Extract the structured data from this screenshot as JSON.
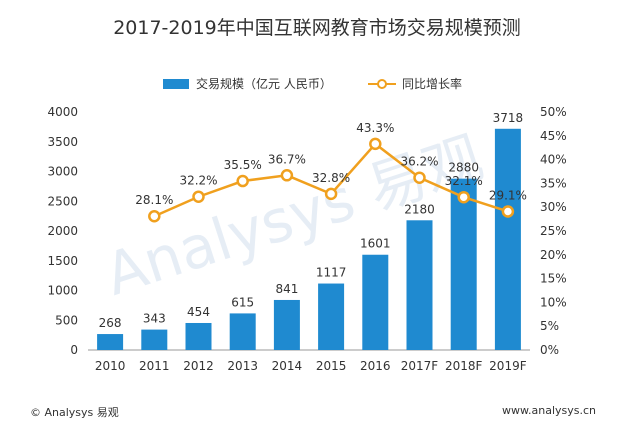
{
  "chart_data": {
    "type": "bar",
    "title": "2017-2019年中国互联网教育市场交易规模预测",
    "categories": [
      "2010",
      "2011",
      "2012",
      "2013",
      "2014",
      "2015",
      "2016",
      "2017F",
      "2018F",
      "2019F"
    ],
    "series": [
      {
        "name": "交易规模（亿元 人民币）",
        "type": "bar",
        "axis": "left",
        "values": [
          268,
          343,
          454,
          615,
          841,
          1117,
          1601,
          2180,
          2880,
          3718
        ],
        "labels": [
          "268",
          "343",
          "454",
          "615",
          "841",
          "1117",
          "1601",
          "2180",
          "2880",
          "3718"
        ]
      },
      {
        "name": "同比增长率",
        "type": "line",
        "axis": "right",
        "values": [
          null,
          28.1,
          32.2,
          35.5,
          36.7,
          32.8,
          43.3,
          36.2,
          32.1,
          29.1
        ],
        "labels": [
          "",
          "28.1%",
          "32.2%",
          "35.5%",
          "36.7%",
          "32.8%",
          "43.3%",
          "36.2%",
          "32.1%",
          "29.1%"
        ]
      }
    ],
    "y_left": {
      "min": 0,
      "max": 4000,
      "ticks": [
        "0",
        "500",
        "1000",
        "1500",
        "2000",
        "2500",
        "3000",
        "3500",
        "4000"
      ]
    },
    "y_right": {
      "min": 0,
      "max": 50,
      "ticks": [
        "0%",
        "5%",
        "10%",
        "15%",
        "20%",
        "25%",
        "30%",
        "35%",
        "40%",
        "45%",
        "50%"
      ]
    },
    "grid": false,
    "legend_position": "top"
  },
  "colors": {
    "bar": "#1f8ad0",
    "line": "#f0a01e",
    "marker_fill": "#ffffff",
    "text": "#333333",
    "watermark": "#c8d8ea"
  },
  "watermark": "Analysys 易观",
  "footer": {
    "left": "© Analysys 易观",
    "right": "www.analysys.cn"
  }
}
